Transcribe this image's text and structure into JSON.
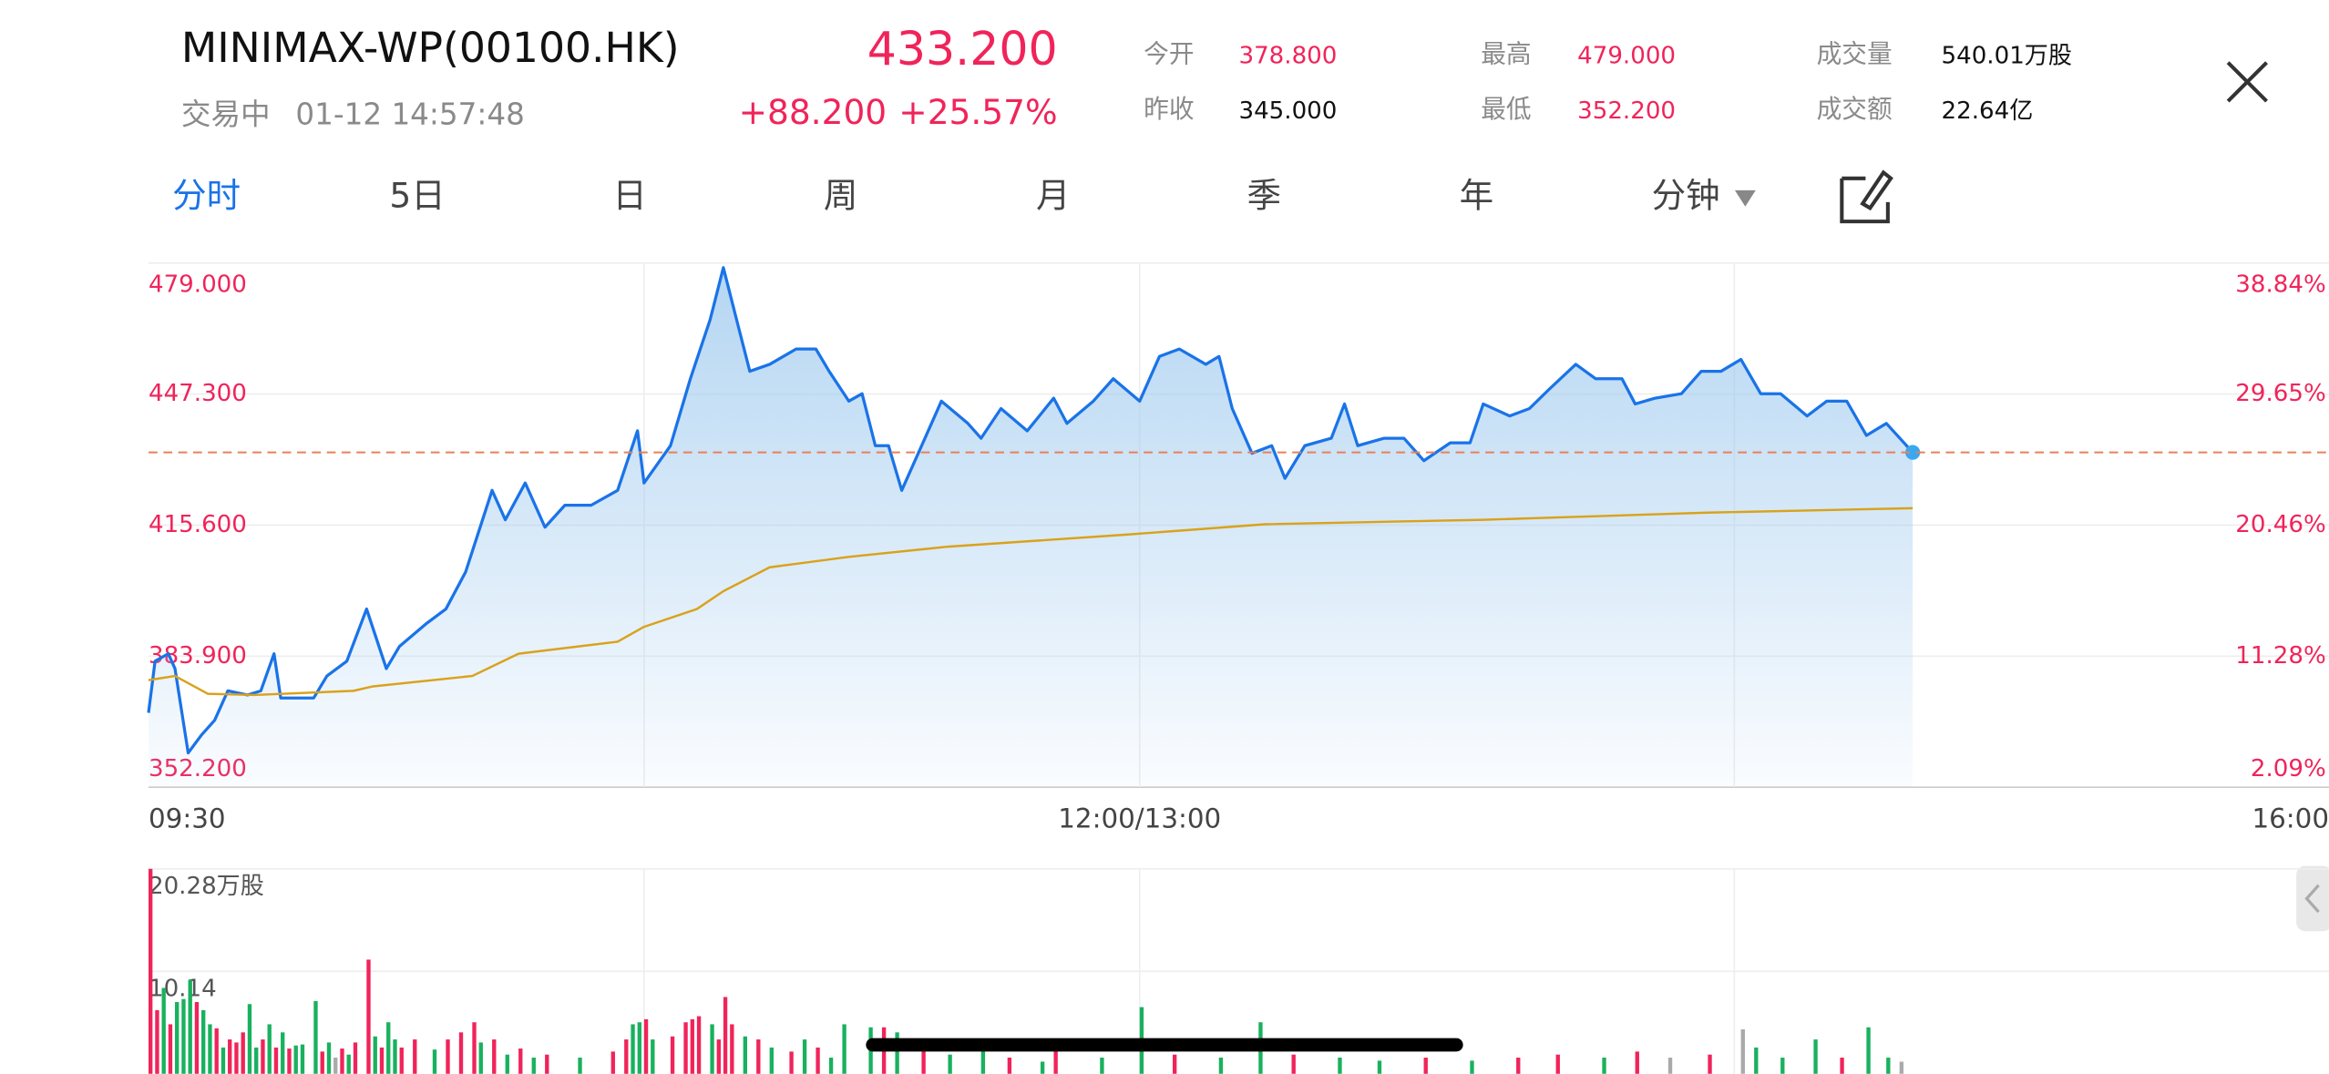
{
  "header": {
    "title": "MINIMAX-WP(00100.HK)",
    "status": "交易中",
    "time": "01-12 14:57:48",
    "price": "433.200",
    "change": "+88.200",
    "change_pct": "+25.57%",
    "stats": [
      {
        "label": "今开",
        "value": "378.800"
      },
      {
        "label": "昨收",
        "value": "345.000"
      },
      {
        "label": "最高",
        "value": "479.000"
      },
      {
        "label": "最低",
        "value": "352.200"
      },
      {
        "label": "成交量",
        "value": "540.01万股"
      },
      {
        "label": "成交额",
        "value": "22.64亿"
      }
    ]
  },
  "tabs": [
    "分时",
    "5日",
    "日",
    "周",
    "月",
    "季",
    "年",
    "分钟"
  ],
  "chart_data": [
    {
      "type": "line",
      "xlim": [
        0,
        330
      ],
      "xticks": [
        {
          "value": 0,
          "label": "09:30"
        },
        {
          "value": 150,
          "label": "12:00/13:00"
        },
        {
          "value": 330,
          "label": "16:00"
        }
      ],
      "xgrid": [
        75,
        150,
        240
      ],
      "ylim": [
        352.2,
        479.0
      ],
      "yticks": [
        {
          "value": 479.0,
          "label": "479.000"
        },
        {
          "value": 447.3,
          "label": "447.300"
        },
        {
          "value": 415.6,
          "label": "415.600"
        },
        {
          "value": 383.9,
          "label": "383.900"
        },
        {
          "value": 352.2,
          "label": "352.200"
        }
      ],
      "y2lim": [
        2.09,
        38.84
      ],
      "y2ticks": [
        {
          "value": 38.84,
          "label": "38.84%"
        },
        {
          "value": 29.65,
          "label": "29.65%"
        },
        {
          "value": 20.46,
          "label": "20.46%"
        },
        {
          "value": 11.28,
          "label": "11.28%"
        },
        {
          "value": 2.09,
          "label": "2.09%"
        }
      ],
      "current_line": 433.2,
      "grid": true,
      "series": [
        {
          "color": "#1a73e8",
          "x": [
            0,
            1,
            3,
            4,
            6,
            8,
            10,
            12,
            15,
            17,
            19,
            20,
            22,
            25,
            27,
            30,
            33,
            36,
            38,
            42,
            45,
            48,
            52,
            54,
            57,
            60,
            63,
            67,
            71,
            74,
            75,
            79,
            82,
            85,
            87,
            89,
            91,
            94,
            98,
            101,
            103,
            106,
            108,
            110,
            112,
            114,
            117,
            120,
            124,
            126,
            129,
            133,
            137,
            139,
            143,
            146,
            150,
            153,
            156,
            160,
            162,
            164,
            167,
            170,
            172,
            175,
            179,
            181,
            183,
            187,
            190,
            193,
            197,
            200,
            202,
            206,
            209,
            212,
            216,
            219,
            223,
            225,
            228,
            232,
            235,
            238,
            241,
            244,
            247,
            251,
            254,
            257,
            260,
            263,
            267
          ],
          "values": [
            370.2,
            382.7,
            384.5,
            380.9,
            360.5,
            364.8,
            368.4,
            375.5,
            374.5,
            375.5,
            384.5,
            373.8,
            373.8,
            373.8,
            379.1,
            382.7,
            395.3,
            380.9,
            386.3,
            391.7,
            395.3,
            404.3,
            424.0,
            416.9,
            425.8,
            415.1,
            420.4,
            420.4,
            424.0,
            438.4,
            425.8,
            434.8,
            451.0,
            465.3,
            477.9,
            465.3,
            452.8,
            454.5,
            458.2,
            458.2,
            452.8,
            445.6,
            447.4,
            434.8,
            434.8,
            424.0,
            434.8,
            445.6,
            440.2,
            436.6,
            443.8,
            438.4,
            446.3,
            440.2,
            445.6,
            451.0,
            445.6,
            456.4,
            458.2,
            454.5,
            456.4,
            443.8,
            433.0,
            434.8,
            426.9,
            434.8,
            436.6,
            444.9,
            434.8,
            436.6,
            436.6,
            431.2,
            435.5,
            435.5,
            444.9,
            442.0,
            443.8,
            448.5,
            454.5,
            451.0,
            451.0,
            444.9,
            446.3,
            447.4,
            452.8,
            452.8,
            455.7,
            447.4,
            447.4,
            442.0,
            445.6,
            445.6,
            437.3,
            440.2,
            433.2
          ]
        },
        {
          "color": "#d9a21b",
          "x": [
            0,
            4,
            9,
            16,
            31,
            34,
            49,
            56,
            71,
            75,
            83,
            87,
            94,
            106,
            121,
            148,
            169,
            202,
            236,
            267
          ],
          "values": [
            378.1,
            379.1,
            374.8,
            374.5,
            375.5,
            376.6,
            379.1,
            384.5,
            387.4,
            391.0,
            395.3,
            399.6,
            405.4,
            407.9,
            410.4,
            413.3,
            415.8,
            416.9,
            418.6,
            419.7
          ]
        }
      ]
    },
    {
      "type": "bar",
      "xlim": [
        0,
        330
      ],
      "xgrid": [
        75,
        150,
        240
      ],
      "ylim": [
        0,
        20.28
      ],
      "yticks": [
        {
          "value": 20.28,
          "label": "20.28万股"
        },
        10.14
      ],
      "x": [
        0,
        1,
        2,
        3,
        4,
        5,
        6,
        7,
        8,
        9,
        10,
        11,
        12,
        13,
        14,
        15,
        16,
        17,
        18,
        19,
        20,
        21,
        22,
        23,
        25,
        26,
        27,
        28,
        29,
        30,
        31,
        33,
        34,
        35,
        36,
        37,
        38,
        40,
        43,
        45,
        47,
        49,
        50,
        52,
        54,
        56,
        58,
        60,
        65,
        70,
        72,
        73,
        74,
        75,
        76,
        79,
        81,
        82,
        83,
        85,
        86,
        87,
        88,
        90,
        92,
        94,
        97,
        99,
        101,
        103,
        105,
        109,
        111,
        113,
        117,
        121,
        126,
        130,
        135,
        137,
        144,
        150,
        155,
        162,
        168,
        173,
        180,
        186,
        193,
        200,
        207,
        213,
        220,
        225,
        230,
        236,
        241,
        243,
        247,
        252,
        256,
        260,
        263,
        265
      ],
      "values": [
        20.28,
        6.3,
        8.5,
        4.9,
        7.1,
        7.4,
        9.3,
        7.1,
        6.3,
        4.9,
        4.5,
        2.6,
        3.4,
        3.1,
        4.1,
        6.9,
        2.6,
        3.4,
        4.9,
        2.6,
        4.1,
        2.5,
        2.8,
        2.9,
        7.2,
        2.2,
        3.1,
        1.6,
        2.5,
        1.9,
        3.1,
        11.3,
        3.7,
        2.6,
        5.1,
        3.4,
        2.6,
        3.4,
        2.4,
        3.4,
        4.1,
        5.1,
        3.1,
        3.4,
        1.9,
        2.5,
        1.6,
        1.9,
        1.6,
        2.2,
        3.4,
        4.9,
        5.1,
        5.4,
        3.4,
        3.7,
        5.1,
        5.4,
        5.7,
        4.9,
        3.4,
        7.6,
        4.9,
        3.7,
        3.4,
        2.6,
        2.2,
        3.4,
        2.6,
        1.6,
        4.9,
        4.6,
        4.6,
        4.1,
        3.4,
        1.9,
        2.6,
        1.6,
        1.2,
        2.6,
        1.6,
        6.6,
        1.9,
        1.6,
        5.1,
        1.9,
        1.6,
        1.3,
        1.6,
        1.3,
        1.6,
        1.9,
        1.6,
        2.2,
        1.6,
        1.9,
        4.4,
        2.6,
        1.6,
        3.4,
        1.6,
        4.6,
        1.6,
        1.2
      ],
      "colors": [
        "#f0245a",
        "#f0245a",
        "#19b15f",
        "#f0245a",
        "#19b15f",
        "#19b15f",
        "#19b15f",
        "#f0245a",
        "#19b15f",
        "#19b15f",
        "#f0245a",
        "#19b15f",
        "#f0245a",
        "#f0245a",
        "#f0245a",
        "#19b15f",
        "#19b15f",
        "#f0245a",
        "#19b15f",
        "#f0245a",
        "#19b15f",
        "#f0245a",
        "#19b15f",
        "#19b15f",
        "#19b15f",
        "#f0245a",
        "#19b15f",
        "#aaaaaa",
        "#f0245a",
        "#19b15f",
        "#f0245a",
        "#f0245a",
        "#19b15f",
        "#f0245a",
        "#19b15f",
        "#19b15f",
        "#f0245a",
        "#f0245a",
        "#19b15f",
        "#f0245a",
        "#f0245a",
        "#f0245a",
        "#19b15f",
        "#f0245a",
        "#19b15f",
        "#f0245a",
        "#19b15f",
        "#f0245a",
        "#19b15f",
        "#f0245a",
        "#f0245a",
        "#19b15f",
        "#19b15f",
        "#f0245a",
        "#19b15f",
        "#f0245a",
        "#f0245a",
        "#f0245a",
        "#f0245a",
        "#19b15f",
        "#f0245a",
        "#f0245a",
        "#f0245a",
        "#19b15f",
        "#f0245a",
        "#19b15f",
        "#f0245a",
        "#19b15f",
        "#f0245a",
        "#19b15f",
        "#19b15f",
        "#19b15f",
        "#f0245a",
        "#19b15f",
        "#f0245a",
        "#19b15f",
        "#19b15f",
        "#f0245a",
        "#19b15f",
        "#f0245a",
        "#19b15f",
        "#19b15f",
        "#f0245a",
        "#19b15f",
        "#19b15f",
        "#f0245a",
        "#19b15f",
        "#19b15f",
        "#f0245a",
        "#19b15f",
        "#f0245a",
        "#f0245a",
        "#19b15f",
        "#f0245a",
        "#aaaaaa",
        "#f0245a",
        "#aaaaaa",
        "#19b15f",
        "#19b15f",
        "#19b15f",
        "#f0245a",
        "#19b15f",
        "#19b15f",
        "#aaaaaa"
      ]
    }
  ]
}
